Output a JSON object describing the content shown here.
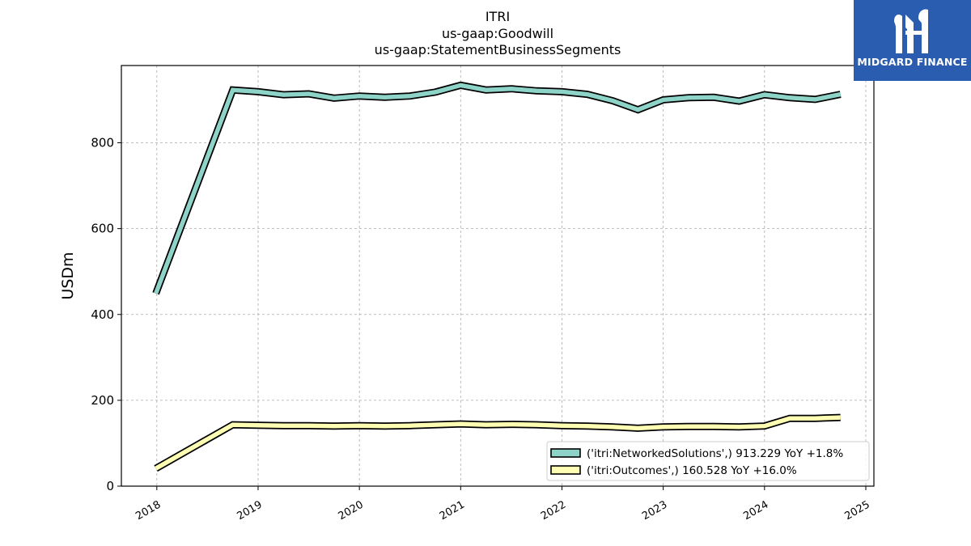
{
  "chart_data": {
    "type": "line",
    "title": "ITRI",
    "subtitle_lines": [
      "us-gaap:Goodwill",
      "us-gaap:StatementBusinessSegments"
    ],
    "xlabel": "",
    "ylabel": "USDm",
    "xlim": [
      2017.65,
      2025.08
    ],
    "ylim": [
      0,
      980
    ],
    "x_ticks": [
      "2018",
      "2019",
      "2020",
      "2021",
      "2022",
      "2023",
      "2024",
      "2025"
    ],
    "y_ticks": [
      0,
      200,
      400,
      600,
      800
    ],
    "grid": true,
    "legend_position": "lower-right",
    "x": [
      2017.99,
      2018.75,
      2019.0,
      2019.25,
      2019.5,
      2019.75,
      2020.0,
      2020.25,
      2020.5,
      2020.75,
      2021.0,
      2021.25,
      2021.5,
      2021.75,
      2022.0,
      2022.25,
      2022.5,
      2022.75,
      2023.0,
      2023.25,
      2023.5,
      2023.75,
      2024.0,
      2024.25,
      2024.5,
      2024.75
    ],
    "series": [
      {
        "legend": "('itri:NetworkedSolutions',) 913.229 YoY +1.8%",
        "color": "#8dd3c7",
        "values": [
          449,
          923,
          919,
          912,
          914,
          904,
          909,
          906,
          909,
          918,
          934,
          923,
          926,
          921,
          919,
          913,
          898,
          877,
          900,
          905,
          906,
          897,
          912,
          905,
          901,
          913
        ]
      },
      {
        "legend": "('itri:Outcomes',) 160.528 YoY +16.0%",
        "color": "#ffffb3",
        "values": [
          41,
          143,
          142,
          141,
          141,
          140,
          141,
          140,
          141,
          143,
          145,
          143,
          144,
          143,
          141,
          140,
          138,
          135,
          138,
          139,
          139,
          138,
          140,
          158,
          158,
          160
        ]
      }
    ]
  },
  "logo": {
    "text": "MIDGARD FINANCE",
    "color": "#2a5db0"
  }
}
